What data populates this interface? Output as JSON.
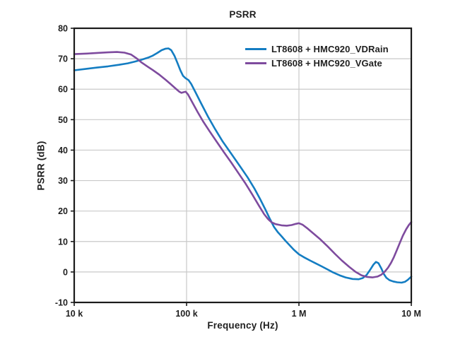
{
  "chart_data": {
    "type": "line",
    "title": "PSRR",
    "xlabel": "Frequency (Hz)",
    "ylabel": "PSRR (dB)",
    "x_scale": "log",
    "xlim": [
      10000,
      10000000
    ],
    "ylim": [
      -10,
      80
    ],
    "ytick_step": 10,
    "grid": true,
    "legend_position": "top-right-inside",
    "colors": {
      "axis": "#1b1b1b",
      "grid": "#c9c9c9",
      "text": "#1f1f1f",
      "background": "#ffffff"
    },
    "yticks": [
      {
        "value": 80,
        "label": "80"
      },
      {
        "value": 70,
        "label": "70"
      },
      {
        "value": 60,
        "label": "60"
      },
      {
        "value": 50,
        "label": "50"
      },
      {
        "value": 40,
        "label": "40"
      },
      {
        "value": 30,
        "label": "30"
      },
      {
        "value": 20,
        "label": "20"
      },
      {
        "value": 10,
        "label": "10"
      },
      {
        "value": 0,
        "label": "0"
      },
      {
        "value": -10,
        "label": "-10"
      }
    ],
    "xticks": [
      {
        "value": 10000,
        "label": "10 k"
      },
      {
        "value": 100000,
        "label": "100 k"
      },
      {
        "value": 1000000,
        "label": "1 M"
      },
      {
        "value": 10000000,
        "label": "10 M"
      }
    ],
    "series": [
      {
        "name": "LT8608 + HMC920_VDRain",
        "color": "#147dc2",
        "points": [
          [
            10000,
            66.2
          ],
          [
            13000,
            66.7
          ],
          [
            16000,
            67.1
          ],
          [
            20000,
            67.5
          ],
          [
            25000,
            68.0
          ],
          [
            30000,
            68.5
          ],
          [
            35000,
            69.1
          ],
          [
            40000,
            69.7
          ],
          [
            45000,
            70.3
          ],
          [
            50000,
            71.0
          ],
          [
            55000,
            71.9
          ],
          [
            60000,
            72.8
          ],
          [
            65000,
            73.3
          ],
          [
            69000,
            73.4
          ],
          [
            73000,
            72.8
          ],
          [
            78000,
            71.0
          ],
          [
            83000,
            68.6
          ],
          [
            88000,
            66.2
          ],
          [
            93000,
            64.4
          ],
          [
            98000,
            63.6
          ],
          [
            104000,
            63.0
          ],
          [
            110000,
            61.7
          ],
          [
            120000,
            59.0
          ],
          [
            135000,
            55.3
          ],
          [
            155000,
            51.0
          ],
          [
            180000,
            46.8
          ],
          [
            210000,
            42.8
          ],
          [
            250000,
            38.8
          ],
          [
            300000,
            34.6
          ],
          [
            350000,
            31.0
          ],
          [
            400000,
            27.5
          ],
          [
            450000,
            24.0
          ],
          [
            500000,
            20.7
          ],
          [
            550000,
            17.5
          ],
          [
            600000,
            14.8
          ],
          [
            650000,
            13.0
          ],
          [
            700000,
            11.7
          ],
          [
            760000,
            10.2
          ],
          [
            830000,
            8.7
          ],
          [
            900000,
            7.3
          ],
          [
            1000000,
            5.8
          ],
          [
            1100000,
            4.9
          ],
          [
            1250000,
            3.8
          ],
          [
            1400000,
            2.9
          ],
          [
            1600000,
            1.8
          ],
          [
            1800000,
            0.8
          ],
          [
            2000000,
            -0.1
          ],
          [
            2300000,
            -1.1
          ],
          [
            2600000,
            -1.8
          ],
          [
            3000000,
            -2.3
          ],
          [
            3400000,
            -2.4
          ],
          [
            3700000,
            -2.0
          ],
          [
            4000000,
            -1.0
          ],
          [
            4300000,
            0.7
          ],
          [
            4600000,
            2.4
          ],
          [
            4850000,
            3.3
          ],
          [
            5100000,
            2.9
          ],
          [
            5400000,
            1.2
          ],
          [
            5700000,
            -0.7
          ],
          [
            6000000,
            -1.9
          ],
          [
            6400000,
            -2.7
          ],
          [
            6900000,
            -3.1
          ],
          [
            7500000,
            -3.4
          ],
          [
            8200000,
            -3.5
          ],
          [
            8800000,
            -3.2
          ],
          [
            9300000,
            -2.6
          ],
          [
            10000000,
            -1.5
          ]
        ]
      },
      {
        "name": "LT8608 + HMC920_VGate",
        "color": "#7e4b9e",
        "points": [
          [
            10000,
            71.5
          ],
          [
            13000,
            71.7
          ],
          [
            16000,
            71.9
          ],
          [
            20000,
            72.1
          ],
          [
            24000,
            72.2
          ],
          [
            28000,
            72.0
          ],
          [
            32000,
            71.4
          ],
          [
            36000,
            70.1
          ],
          [
            40000,
            68.7
          ],
          [
            45000,
            67.4
          ],
          [
            50000,
            66.3
          ],
          [
            57000,
            64.8
          ],
          [
            65000,
            63.1
          ],
          [
            72000,
            61.7
          ],
          [
            80000,
            60.2
          ],
          [
            86000,
            59.2
          ],
          [
            90000,
            58.8
          ],
          [
            94000,
            59.0
          ],
          [
            98000,
            59.2
          ],
          [
            103000,
            58.3
          ],
          [
            112000,
            55.8
          ],
          [
            125000,
            52.6
          ],
          [
            140000,
            49.5
          ],
          [
            160000,
            46.2
          ],
          [
            185000,
            42.8
          ],
          [
            215000,
            39.3
          ],
          [
            250000,
            35.9
          ],
          [
            290000,
            32.4
          ],
          [
            335000,
            29.0
          ],
          [
            385000,
            25.4
          ],
          [
            440000,
            21.8
          ],
          [
            490000,
            19.0
          ],
          [
            530000,
            17.4
          ],
          [
            570000,
            16.3
          ],
          [
            620000,
            15.7
          ],
          [
            700000,
            15.3
          ],
          [
            780000,
            15.2
          ],
          [
            860000,
            15.4
          ],
          [
            940000,
            15.8
          ],
          [
            1000000,
            16.0
          ],
          [
            1080000,
            15.5
          ],
          [
            1200000,
            14.2
          ],
          [
            1350000,
            12.6
          ],
          [
            1550000,
            10.7
          ],
          [
            1800000,
            8.4
          ],
          [
            2100000,
            5.9
          ],
          [
            2400000,
            3.8
          ],
          [
            2800000,
            1.7
          ],
          [
            3200000,
            0.0
          ],
          [
            3600000,
            -1.1
          ],
          [
            4000000,
            -1.6
          ],
          [
            4500000,
            -1.8
          ],
          [
            5000000,
            -1.5
          ],
          [
            5400000,
            -0.9
          ],
          [
            5800000,
            0.1
          ],
          [
            6200000,
            1.4
          ],
          [
            6600000,
            3.0
          ],
          [
            7000000,
            4.9
          ],
          [
            7400000,
            7.0
          ],
          [
            7900000,
            9.5
          ],
          [
            8400000,
            11.9
          ],
          [
            9000000,
            14.0
          ],
          [
            9500000,
            15.4
          ],
          [
            10000000,
            16.4
          ]
        ]
      }
    ]
  }
}
